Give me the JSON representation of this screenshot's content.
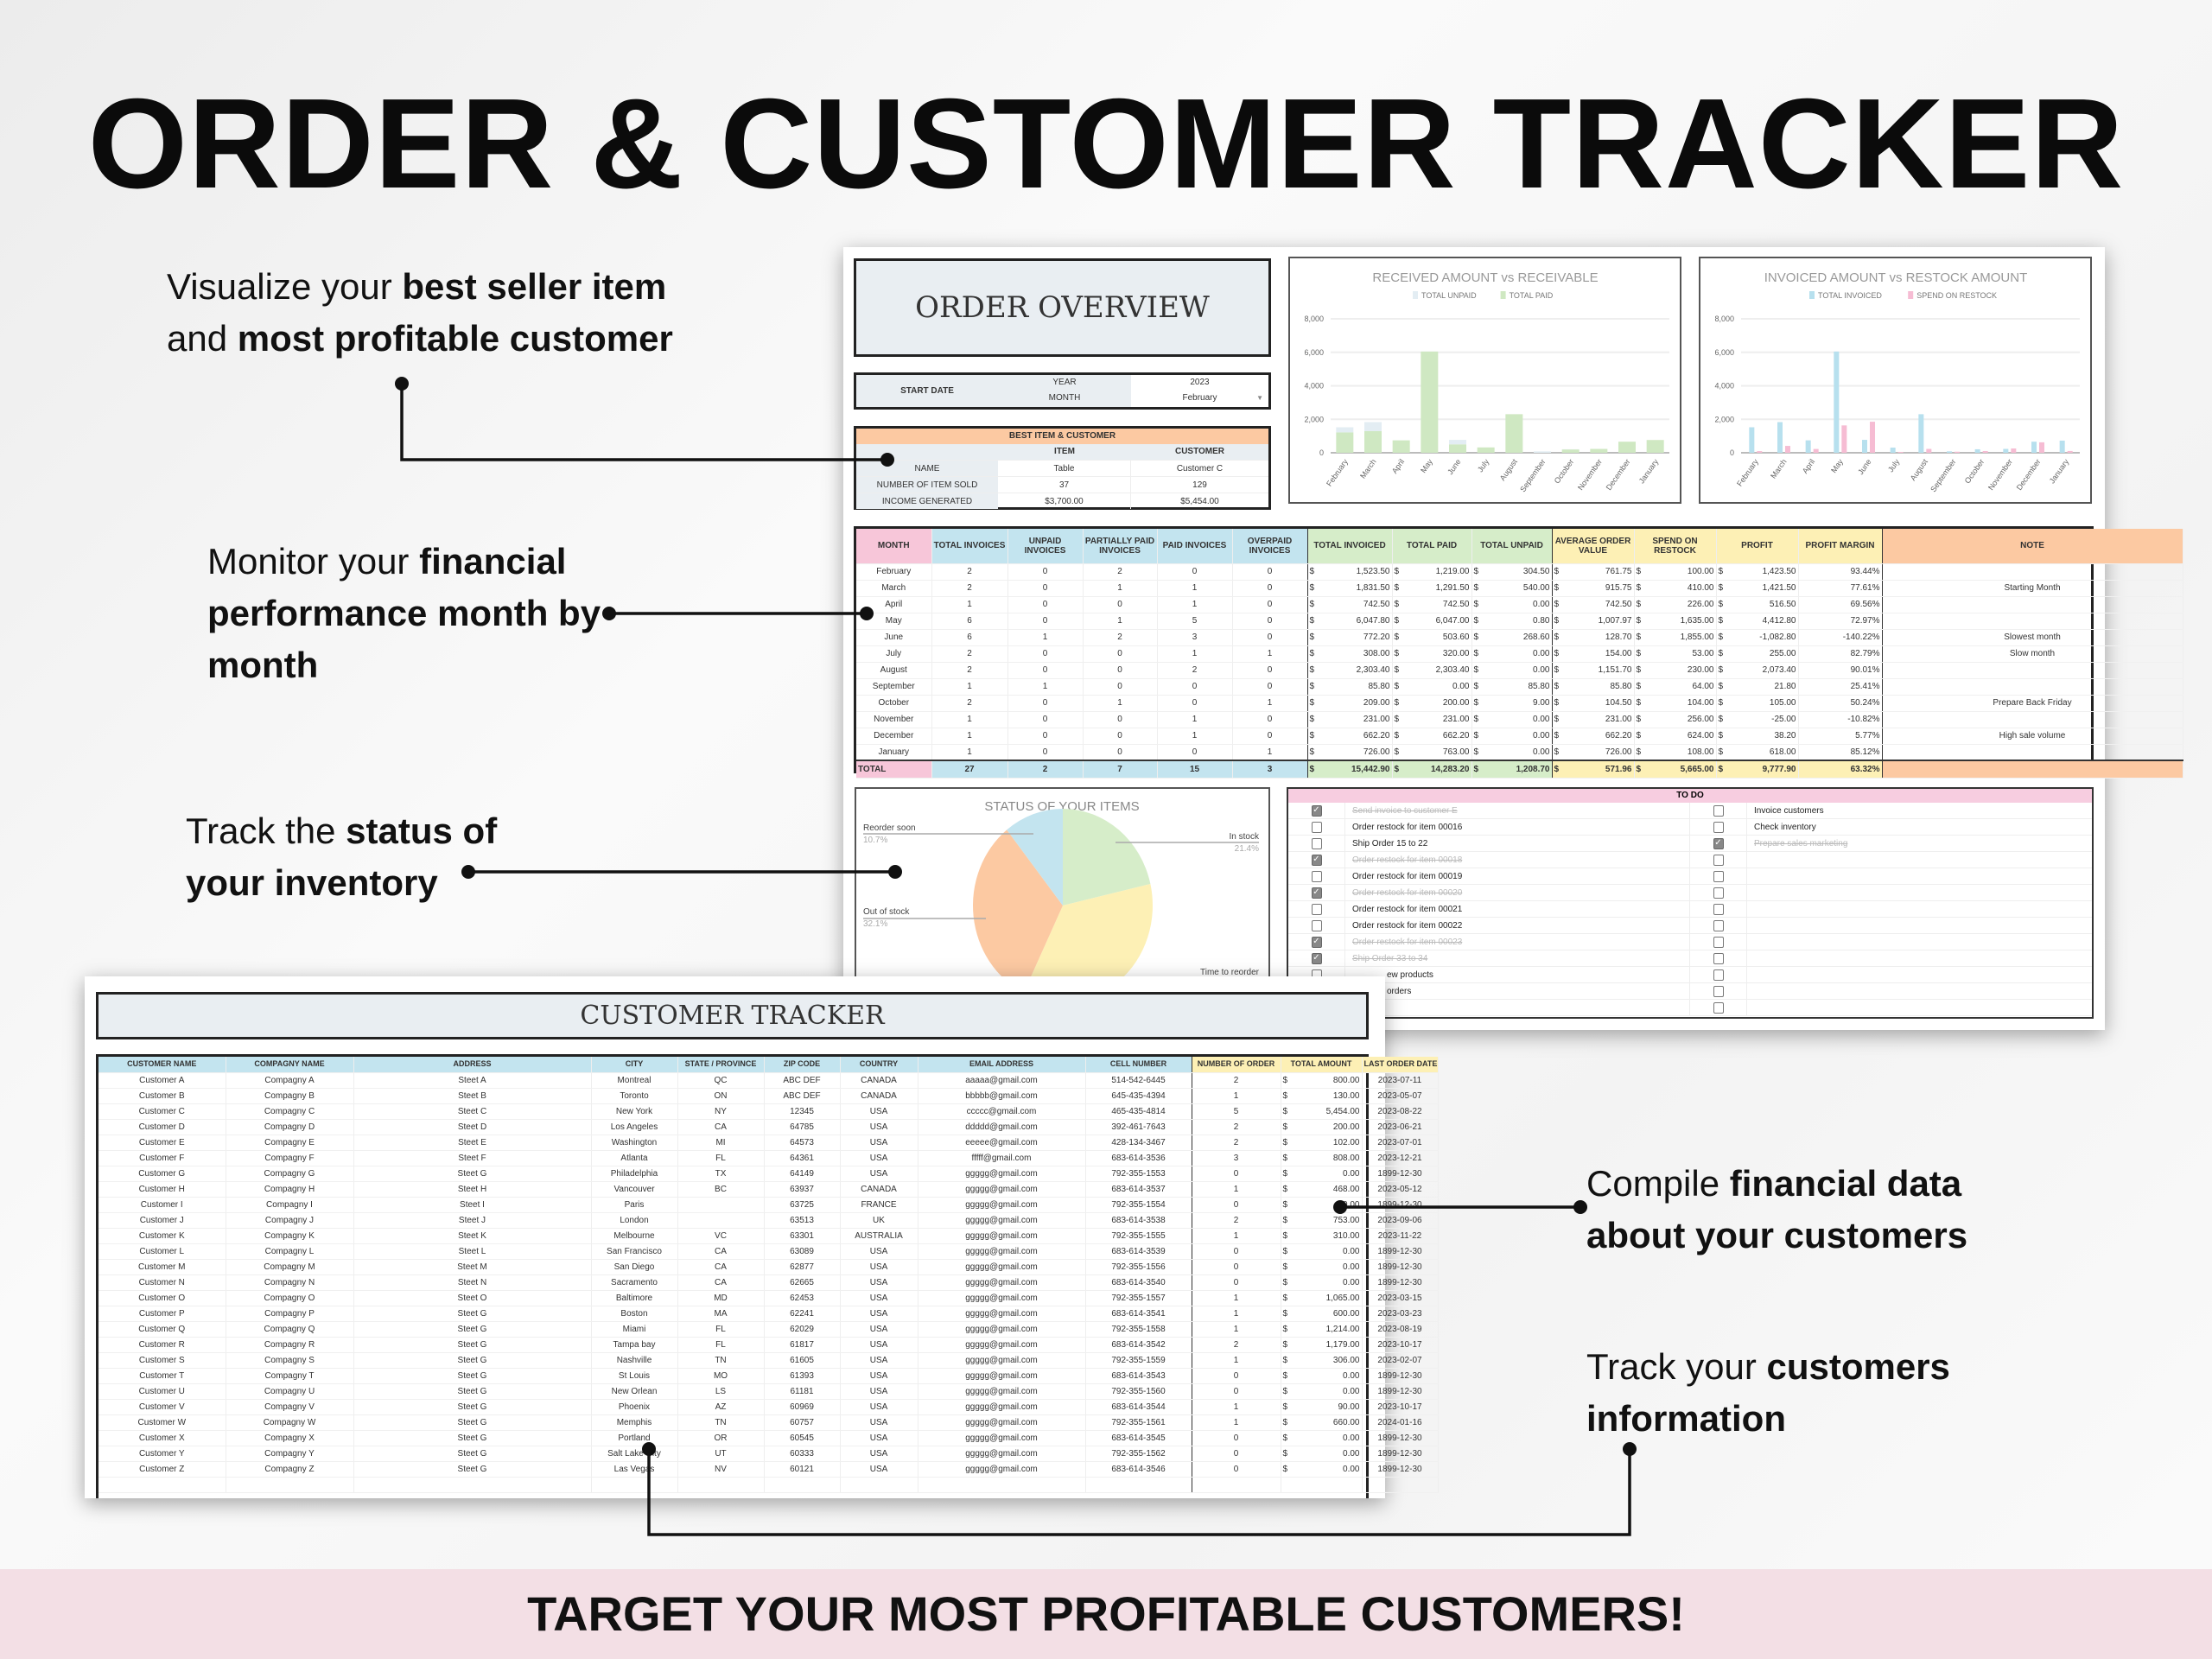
{
  "title": "ORDER & CUSTOMER TRACKER",
  "banner": "TARGET YOUR MOST PROFITABLE CUSTOMERS!",
  "annotations": {
    "a1": {
      "pre": "Visualize your ",
      "b1": "best seller item",
      "mid": "and ",
      "b2": "most profitable customer"
    },
    "a2": {
      "pre": "Monitor your ",
      "b1": "financial performance month by month"
    },
    "a3": {
      "pre": "Track the ",
      "b1": "status of your inventory"
    },
    "a4": {
      "pre": "Compile ",
      "b1": "financial data about your customers"
    },
    "a5": {
      "pre": "Track your ",
      "b1": "customers information"
    }
  },
  "overview": {
    "title": "ORDER OVERVIEW",
    "start_date_label": "START DATE",
    "year_label": "YEAR",
    "year": "2023",
    "month_label": "MONTH",
    "month": "February",
    "best": {
      "header": "BEST ITEM & CUSTOMER",
      "col_item": "ITEM",
      "col_customer": "CUSTOMER",
      "rows": [
        [
          "NAME",
          "Table",
          "Customer C"
        ],
        [
          "NUMBER OF ITEM SOLD",
          "37",
          "129"
        ],
        [
          "INCOME GENERATED",
          "$3,700.00",
          "$5,454.00"
        ]
      ]
    }
  },
  "colors": {
    "pink": "#f7c6d9",
    "blue": "#c3e4ef",
    "green": "#d6edc9",
    "yellow": "#fdf0b5",
    "orange": "#fcc9a2"
  },
  "chart_data": [
    {
      "type": "bar",
      "stacked": true,
      "title": "RECEIVED AMOUNT vs RECEIVABLE",
      "ylim": [
        0,
        8000
      ],
      "yticks": [
        0,
        2000,
        4000,
        6000,
        8000
      ],
      "grid": true,
      "legend": "top",
      "categories": [
        "February",
        "March",
        "April",
        "May",
        "June",
        "July",
        "August",
        "September",
        "October",
        "November",
        "December",
        "January"
      ],
      "series": [
        {
          "name": "TOTAL UNPAID",
          "color": "#e3edf3",
          "values": [
            304.5,
            540,
            0,
            0.8,
            268.6,
            0,
            0,
            85.8,
            9,
            0,
            0,
            0
          ]
        },
        {
          "name": "TOTAL PAID",
          "color": "#cfe8c2",
          "values": [
            1219,
            1291.5,
            742.5,
            6047,
            503.6,
            320,
            2303.4,
            0,
            200,
            231,
            662.2,
            763
          ]
        }
      ]
    },
    {
      "type": "bar",
      "stacked": false,
      "title": "INVOICED AMOUNT vs RESTOCK AMOUNT",
      "ylim": [
        0,
        8000
      ],
      "yticks": [
        0,
        2000,
        4000,
        6000,
        8000
      ],
      "grid": true,
      "legend": "top",
      "categories": [
        "February",
        "March",
        "April",
        "May",
        "June",
        "July",
        "August",
        "September",
        "October",
        "November",
        "December",
        "January"
      ],
      "series": [
        {
          "name": "TOTAL INVOICED",
          "color": "#b7e0ee",
          "values": [
            1523.5,
            1831.5,
            742.5,
            6047.8,
            772.2,
            308,
            2303.4,
            85.8,
            209,
            231,
            662.2,
            726
          ]
        },
        {
          "name": "SPEND ON RESTOCK",
          "color": "#f6bcd3",
          "values": [
            100,
            410,
            226,
            1635,
            1855,
            53,
            230,
            64,
            104,
            256,
            624,
            108
          ]
        }
      ]
    },
    {
      "type": "pie",
      "title": "STATUS OF YOUR ITEMS",
      "slices": [
        {
          "label": "In stock",
          "value": 21.4,
          "pct": "21.4%",
          "color": "#d6edc9"
        },
        {
          "label": "Time to reorder",
          "value": 35.7,
          "pct": "",
          "color": "#fdf0b5"
        },
        {
          "label": "Out of stock",
          "value": 32.1,
          "pct": "32.1%",
          "color": "#fcc9a2"
        },
        {
          "label": "Reorder soon",
          "value": 10.7,
          "pct": "10.7%",
          "color": "#c3e4ef"
        }
      ]
    }
  ],
  "monthly": {
    "headers": [
      "MONTH",
      "TOTAL INVOICES",
      "UNPAID INVOICES",
      "PARTIALLY PAID INVOICES",
      "PAID INVOICES",
      "OVERPAID INVOICES",
      "TOTAL INVOICED",
      "TOTAL PAID",
      "TOTAL UNPAID",
      "AVERAGE ORDER VALUE",
      "SPEND ON RESTOCK",
      "PROFIT",
      "PROFIT MARGIN",
      "NOTE"
    ],
    "rows": [
      [
        "February",
        "2",
        "0",
        "2",
        "0",
        "0",
        "1,523.50",
        "1,219.00",
        "304.50",
        "761.75",
        "100.00",
        "1,423.50",
        "93.44%",
        ""
      ],
      [
        "March",
        "2",
        "0",
        "1",
        "1",
        "0",
        "1,831.50",
        "1,291.50",
        "540.00",
        "915.75",
        "410.00",
        "1,421.50",
        "77.61%",
        "Starting Month"
      ],
      [
        "April",
        "1",
        "0",
        "0",
        "1",
        "0",
        "742.50",
        "742.50",
        "0.00",
        "742.50",
        "226.00",
        "516.50",
        "69.56%",
        ""
      ],
      [
        "May",
        "6",
        "0",
        "1",
        "5",
        "0",
        "6,047.80",
        "6,047.00",
        "0.80",
        "1,007.97",
        "1,635.00",
        "4,412.80",
        "72.97%",
        ""
      ],
      [
        "June",
        "6",
        "1",
        "2",
        "3",
        "0",
        "772.20",
        "503.60",
        "268.60",
        "128.70",
        "1,855.00",
        "-1,082.80",
        "-140.22%",
        "Slowest month"
      ],
      [
        "July",
        "2",
        "0",
        "0",
        "1",
        "1",
        "308.00",
        "320.00",
        "0.00",
        "154.00",
        "53.00",
        "255.00",
        "82.79%",
        "Slow month"
      ],
      [
        "August",
        "2",
        "0",
        "0",
        "2",
        "0",
        "2,303.40",
        "2,303.40",
        "0.00",
        "1,151.70",
        "230.00",
        "2,073.40",
        "90.01%",
        ""
      ],
      [
        "September",
        "1",
        "1",
        "0",
        "0",
        "0",
        "85.80",
        "0.00",
        "85.80",
        "85.80",
        "64.00",
        "21.80",
        "25.41%",
        ""
      ],
      [
        "October",
        "2",
        "0",
        "1",
        "0",
        "1",
        "209.00",
        "200.00",
        "9.00",
        "104.50",
        "104.00",
        "105.00",
        "50.24%",
        "Prepare Back Friday"
      ],
      [
        "November",
        "1",
        "0",
        "0",
        "1",
        "0",
        "231.00",
        "231.00",
        "0.00",
        "231.00",
        "256.00",
        "-25.00",
        "-10.82%",
        ""
      ],
      [
        "December",
        "1",
        "0",
        "0",
        "1",
        "0",
        "662.20",
        "662.20",
        "0.00",
        "662.20",
        "624.00",
        "38.20",
        "5.77%",
        "High sale volume"
      ],
      [
        "January",
        "1",
        "0",
        "0",
        "0",
        "1",
        "726.00",
        "763.00",
        "0.00",
        "726.00",
        "108.00",
        "618.00",
        "85.12%",
        ""
      ]
    ],
    "total": [
      "TOTAL",
      "27",
      "2",
      "7",
      "15",
      "3",
      "15,442.90",
      "14,283.20",
      "1,208.70",
      "571.96",
      "5,665.00",
      "9,777.90",
      "63.32%",
      ""
    ]
  },
  "todo": {
    "header": "TO DO",
    "left": [
      {
        "text": "Send invoice to customer E",
        "done": true
      },
      {
        "text": "Order restock for item 00016",
        "done": false
      },
      {
        "text": "Ship Order 15 to 22",
        "done": false
      },
      {
        "text": "Order restock for item 00018",
        "done": true
      },
      {
        "text": "Order restock for item 00019",
        "done": false
      },
      {
        "text": "Order restock for item 00020",
        "done": true
      },
      {
        "text": "Order restock for item 00021",
        "done": false
      },
      {
        "text": "Order restock for item 00022",
        "done": false
      },
      {
        "text": "Order restock for item 00023",
        "done": true
      },
      {
        "text": "Ship Order 33 to 34",
        "done": true
      },
      {
        "text": "ew products",
        "done": false
      },
      {
        "text": "orders",
        "done": false
      },
      {
        "text": "",
        "done": false
      }
    ],
    "right": [
      {
        "text": "Invoice customers",
        "done": false
      },
      {
        "text": "Check inventory",
        "done": false
      },
      {
        "text": "Prepare sales marketing",
        "done": true
      },
      {
        "text": "",
        "done": false
      },
      {
        "text": "",
        "done": false
      },
      {
        "text": "",
        "done": false
      },
      {
        "text": "",
        "done": false
      },
      {
        "text": "",
        "done": false
      },
      {
        "text": "",
        "done": false
      },
      {
        "text": "",
        "done": false
      },
      {
        "text": "",
        "done": false
      },
      {
        "text": "",
        "done": false
      },
      {
        "text": "",
        "done": false
      }
    ]
  },
  "customers": {
    "title": "CUSTOMER TRACKER",
    "headers": [
      "CUSTOMER NAME",
      "COMPAGNY NAME",
      "ADDRESS",
      "CITY",
      "STATE / PROVINCE",
      "ZIP CODE",
      "COUNTRY",
      "EMAIL ADDRESS",
      "CELL NUMBER",
      "NUMBER OF ORDER",
      "TOTAL AMOUNT",
      "LAST ORDER DATE"
    ],
    "rows": [
      [
        "Customer A",
        "Compagny A",
        "Steet A",
        "Montreal",
        "QC",
        "ABC DEF",
        "CANADA",
        "aaaaa@gmail.com",
        "514-542-6445",
        "2",
        "800.00",
        "2023-07-11"
      ],
      [
        "Customer B",
        "Compagny B",
        "Steet B",
        "Toronto",
        "ON",
        "ABC DEF",
        "CANADA",
        "bbbbb@gmail.com",
        "645-435-4394",
        "1",
        "130.00",
        "2023-05-07"
      ],
      [
        "Customer C",
        "Compagny C",
        "Steet C",
        "New York",
        "NY",
        "12345",
        "USA",
        "ccccc@gmail.com",
        "465-435-4814",
        "5",
        "5,454.00",
        "2023-08-22"
      ],
      [
        "Customer D",
        "Compagny D",
        "Steet D",
        "Los Angeles",
        "CA",
        "64785",
        "USA",
        "ddddd@gmail.com",
        "392-461-7643",
        "2",
        "200.00",
        "2023-06-21"
      ],
      [
        "Customer E",
        "Compagny E",
        "Steet E",
        "Washington",
        "MI",
        "64573",
        "USA",
        "eeeee@gmail.com",
        "428-134-3467",
        "2",
        "102.00",
        "2023-07-01"
      ],
      [
        "Customer F",
        "Compagny F",
        "Steet F",
        "Atlanta",
        "FL",
        "64361",
        "USA",
        "fffff@gmail.com",
        "683-614-3536",
        "3",
        "808.00",
        "2023-12-21"
      ],
      [
        "Customer G",
        "Compagny G",
        "Steet G",
        "Philadelphia",
        "TX",
        "64149",
        "USA",
        "ggggg@gmail.com",
        "792-355-1553",
        "0",
        "0.00",
        "1899-12-30"
      ],
      [
        "Customer H",
        "Compagny H",
        "Steet H",
        "Vancouver",
        "BC",
        "63937",
        "CANADA",
        "ggggg@gmail.com",
        "683-614-3537",
        "1",
        "468.00",
        "2023-05-12"
      ],
      [
        "Customer I",
        "Compagny I",
        "Steet I",
        "Paris",
        "",
        "63725",
        "FRANCE",
        "ggggg@gmail.com",
        "792-355-1554",
        "0",
        "0.00",
        "1899-12-30"
      ],
      [
        "Customer J",
        "Compagny J",
        "Steet J",
        "London",
        "",
        "63513",
        "UK",
        "ggggg@gmail.com",
        "683-614-3538",
        "2",
        "753.00",
        "2023-09-06"
      ],
      [
        "Customer K",
        "Compagny K",
        "Steet K",
        "Melbourne",
        "VC",
        "63301",
        "AUSTRALIA",
        "ggggg@gmail.com",
        "792-355-1555",
        "1",
        "310.00",
        "2023-11-22"
      ],
      [
        "Customer L",
        "Compagny L",
        "Steet L",
        "San Francisco",
        "CA",
        "63089",
        "USA",
        "ggggg@gmail.com",
        "683-614-3539",
        "0",
        "0.00",
        "1899-12-30"
      ],
      [
        "Customer M",
        "Compagny M",
        "Steet M",
        "San Diego",
        "CA",
        "62877",
        "USA",
        "ggggg@gmail.com",
        "792-355-1556",
        "0",
        "0.00",
        "1899-12-30"
      ],
      [
        "Customer N",
        "Compagny N",
        "Steet N",
        "Sacramento",
        "CA",
        "62665",
        "USA",
        "ggggg@gmail.com",
        "683-614-3540",
        "0",
        "0.00",
        "1899-12-30"
      ],
      [
        "Customer O",
        "Compagny O",
        "Steet O",
        "Baltimore",
        "MD",
        "62453",
        "USA",
        "ggggg@gmail.com",
        "792-355-1557",
        "1",
        "1,065.00",
        "2023-03-15"
      ],
      [
        "Customer P",
        "Compagny P",
        "Steet G",
        "Boston",
        "MA",
        "62241",
        "USA",
        "ggggg@gmail.com",
        "683-614-3541",
        "1",
        "600.00",
        "2023-03-23"
      ],
      [
        "Customer Q",
        "Compagny Q",
        "Steet G",
        "Miami",
        "FL",
        "62029",
        "USA",
        "ggggg@gmail.com",
        "792-355-1558",
        "1",
        "1,214.00",
        "2023-08-19"
      ],
      [
        "Customer R",
        "Compagny R",
        "Steet G",
        "Tampa bay",
        "FL",
        "61817",
        "USA",
        "ggggg@gmail.com",
        "683-614-3542",
        "2",
        "1,179.00",
        "2023-10-17"
      ],
      [
        "Customer S",
        "Compagny S",
        "Steet G",
        "Nashville",
        "TN",
        "61605",
        "USA",
        "ggggg@gmail.com",
        "792-355-1559",
        "1",
        "306.00",
        "2023-02-07"
      ],
      [
        "Customer T",
        "Compagny T",
        "Steet G",
        "St Louis",
        "MO",
        "61393",
        "USA",
        "ggggg@gmail.com",
        "683-614-3543",
        "0",
        "0.00",
        "1899-12-30"
      ],
      [
        "Customer U",
        "Compagny U",
        "Steet G",
        "New Orlean",
        "LS",
        "61181",
        "USA",
        "ggggg@gmail.com",
        "792-355-1560",
        "0",
        "0.00",
        "1899-12-30"
      ],
      [
        "Customer V",
        "Compagny V",
        "Steet G",
        "Phoenix",
        "AZ",
        "60969",
        "USA",
        "ggggg@gmail.com",
        "683-614-3544",
        "1",
        "90.00",
        "2023-10-17"
      ],
      [
        "Customer W",
        "Compagny W",
        "Steet G",
        "Memphis",
        "TN",
        "60757",
        "USA",
        "ggggg@gmail.com",
        "792-355-1561",
        "1",
        "660.00",
        "2024-01-16"
      ],
      [
        "Customer X",
        "Compagny X",
        "Steet G",
        "Portland",
        "OR",
        "60545",
        "USA",
        "ggggg@gmail.com",
        "683-614-3545",
        "0",
        "0.00",
        "1899-12-30"
      ],
      [
        "Customer Y",
        "Compagny Y",
        "Steet G",
        "Salt Lake City",
        "UT",
        "60333",
        "USA",
        "ggggg@gmail.com",
        "792-355-1562",
        "0",
        "0.00",
        "1899-12-30"
      ],
      [
        "Customer Z",
        "Compagny Z",
        "Steet G",
        "Las Vegas",
        "NV",
        "60121",
        "USA",
        "ggggg@gmail.com",
        "683-614-3546",
        "0",
        "0.00",
        "1899-12-30"
      ]
    ]
  }
}
